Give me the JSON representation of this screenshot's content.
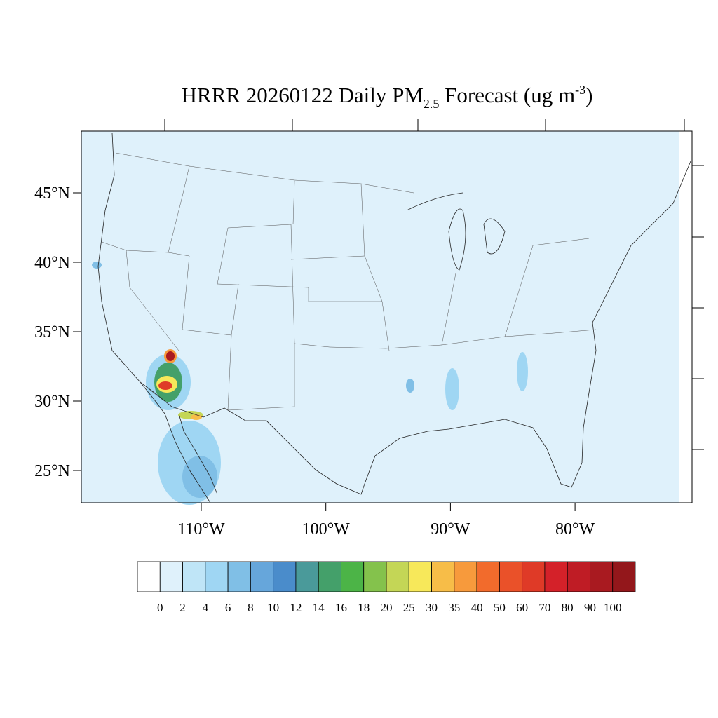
{
  "title": {
    "main": "HRRR 20260122 Daily PM",
    "sub": "2.5",
    "mid": " Forecast (ug m",
    "sup": "-3",
    "end": ")"
  },
  "map": {
    "lat_ticks": [
      {
        "value": 45,
        "label": "45°N"
      },
      {
        "value": 40,
        "label": "40°N"
      },
      {
        "value": 35,
        "label": "35°N"
      },
      {
        "value": 30,
        "label": "30°N"
      },
      {
        "value": 25,
        "label": "25°N"
      }
    ],
    "lon_ticks": [
      {
        "value": -110,
        "label": "110°W"
      },
      {
        "value": -100,
        "label": "100°W"
      },
      {
        "value": -90,
        "label": "90°W"
      },
      {
        "value": -80,
        "label": "80°W"
      }
    ]
  },
  "colorbar": {
    "levels": [
      0,
      2,
      4,
      6,
      8,
      10,
      12,
      14,
      16,
      18,
      20,
      25,
      30,
      35,
      40,
      50,
      60,
      70,
      80,
      90,
      100
    ],
    "colors": [
      "#ffffff",
      "#dff1fb",
      "#bfe5f7",
      "#9fd6f3",
      "#80bfe6",
      "#66a6db",
      "#4a8ccb",
      "#4a9a9a",
      "#44a06a",
      "#4cb447",
      "#84c24c",
      "#c4d656",
      "#f7e85a",
      "#f7bd48",
      "#f79a3c",
      "#f26b2c",
      "#ea5129",
      "#df3a27",
      "#d42129",
      "#bf1c25",
      "#a91a20",
      "#93171b"
    ]
  }
}
